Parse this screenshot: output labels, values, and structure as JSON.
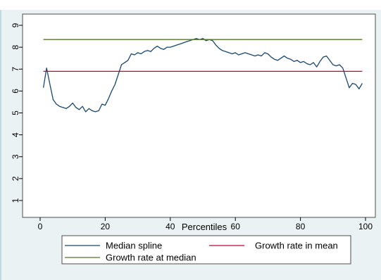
{
  "chart_data": {
    "type": "line",
    "title": "",
    "xlabel": "Percentiles",
    "ylabel": "",
    "xlim": [
      0,
      100
    ],
    "ylim": [
      1,
      9
    ],
    "xticks": [
      0,
      20,
      40,
      60,
      80,
      100
    ],
    "yticks": [
      1,
      2,
      3,
      4,
      5,
      6,
      7,
      8,
      9
    ],
    "grid": false,
    "legend_position": "bottom",
    "series": [
      {
        "name": "Median spline",
        "color": "#1a476f",
        "x": [
          1,
          2,
          3,
          4,
          5,
          6,
          7,
          8,
          9,
          10,
          11,
          12,
          13,
          14,
          15,
          16,
          17,
          18,
          19,
          20,
          21,
          22,
          23,
          24,
          25,
          26,
          27,
          28,
          29,
          30,
          31,
          32,
          33,
          34,
          35,
          36,
          37,
          38,
          39,
          40,
          41,
          42,
          43,
          44,
          45,
          46,
          47,
          48,
          49,
          50,
          51,
          52,
          53,
          54,
          55,
          56,
          57,
          58,
          59,
          60,
          61,
          62,
          63,
          64,
          65,
          66,
          67,
          68,
          69,
          70,
          71,
          72,
          73,
          74,
          75,
          76,
          77,
          78,
          79,
          80,
          81,
          82,
          83,
          84,
          85,
          86,
          87,
          88,
          89,
          90,
          91,
          92,
          93,
          94,
          95,
          96,
          97,
          98,
          99
        ],
        "values": [
          6.15,
          7.05,
          6.3,
          5.6,
          5.4,
          5.3,
          5.25,
          5.2,
          5.3,
          5.45,
          5.25,
          5.15,
          5.3,
          5.05,
          5.2,
          5.1,
          5.05,
          5.1,
          5.4,
          5.35,
          5.65,
          6.0,
          6.3,
          6.75,
          7.2,
          7.3,
          7.4,
          7.7,
          7.65,
          7.75,
          7.7,
          7.8,
          7.85,
          7.8,
          7.95,
          8.05,
          7.95,
          7.9,
          8.0,
          8.0,
          8.05,
          8.1,
          8.15,
          8.2,
          8.25,
          8.3,
          8.35,
          8.4,
          8.35,
          8.4,
          8.3,
          8.35,
          8.3,
          8.1,
          7.95,
          7.85,
          7.8,
          7.75,
          7.7,
          7.75,
          7.65,
          7.7,
          7.75,
          7.7,
          7.65,
          7.6,
          7.65,
          7.6,
          7.75,
          7.7,
          7.55,
          7.45,
          7.4,
          7.5,
          7.6,
          7.5,
          7.45,
          7.35,
          7.4,
          7.3,
          7.35,
          7.25,
          7.2,
          7.3,
          7.1,
          7.35,
          7.55,
          7.6,
          7.4,
          7.2,
          7.15,
          7.2,
          7.05,
          6.6,
          6.15,
          6.35,
          6.3,
          6.1,
          6.35
        ]
      },
      {
        "name": "Growth rate in mean",
        "color": "#c10534",
        "x": [
          1,
          99
        ],
        "values": [
          6.9,
          6.9
        ]
      },
      {
        "name": "Growth rate at median",
        "color": "#55752f",
        "x": [
          1,
          99
        ],
        "values": [
          8.35,
          8.35
        ]
      }
    ]
  }
}
